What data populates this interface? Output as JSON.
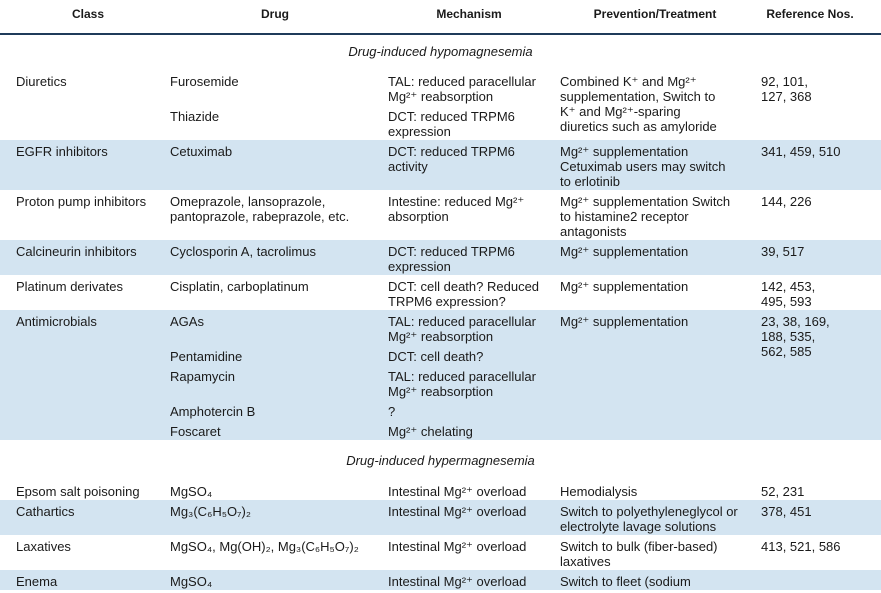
{
  "header": [
    "Class",
    "Drug",
    "Mechanism",
    "Prevention/Treatment",
    "Reference Nos."
  ],
  "sections": [
    {
      "title": "Drug-induced hypomagnesemia",
      "rows": [
        {
          "class": [
            "Diuretics"
          ],
          "entries": [
            {
              "drug": [
                "Furosemide"
              ],
              "mechanism": [
                "TAL: reduced paracellular",
                "Mg²⁺ reabsorption"
              ]
            },
            {
              "drug": [
                "Thiazide"
              ],
              "mechanism": [
                "DCT: reduced TRPM6",
                "expression"
              ]
            }
          ],
          "prevention": [
            "Combined K⁺ and Mg²⁺",
            "supplementation, Switch to",
            "K⁺ and Mg²⁺-sparing",
            "diuretics such as amyloride"
          ],
          "references": [
            "92, 101,",
            "127, 368"
          ]
        },
        {
          "class": [
            "EGFR inhibitors"
          ],
          "entries": [
            {
              "drug": [
                "Cetuximab"
              ],
              "mechanism": [
                "DCT: reduced TRPM6",
                "activity"
              ]
            }
          ],
          "prevention": [
            "Mg²⁺ supplementation",
            "Cetuximab users may switch",
            "to erlotinib"
          ],
          "references": [
            "341, 459, 510"
          ]
        },
        {
          "class": [
            "Proton pump inhibitors"
          ],
          "entries": [
            {
              "drug": [
                "Omeprazole, lansoprazole,",
                "pantoprazole, rabeprazole, etc."
              ],
              "mechanism": [
                "Intestine: reduced Mg²⁺",
                "absorption"
              ]
            }
          ],
          "prevention": [
            "Mg²⁺ supplementation Switch",
            "to histamine2 receptor",
            "antagonists"
          ],
          "references": [
            "144, 226"
          ]
        },
        {
          "class": [
            "Calcineurin inhibitors"
          ],
          "entries": [
            {
              "drug": [
                "Cyclosporin A, tacrolimus"
              ],
              "mechanism": [
                "DCT: reduced TRPM6",
                "expression"
              ]
            }
          ],
          "prevention": [
            "Mg²⁺ supplementation"
          ],
          "references": [
            "39, 517"
          ]
        },
        {
          "class": [
            "Platinum derivates"
          ],
          "entries": [
            {
              "drug": [
                "Cisplatin, carboplatinum"
              ],
              "mechanism": [
                "DCT: cell death? Reduced",
                "TRPM6 expression?"
              ]
            }
          ],
          "prevention": [
            "Mg²⁺ supplementation"
          ],
          "references": [
            "142, 453,",
            "495, 593"
          ]
        },
        {
          "class": [
            "Antimicrobials"
          ],
          "entries": [
            {
              "drug": [
                "AGAs"
              ],
              "mechanism": [
                "TAL: reduced paracellular",
                "Mg²⁺ reabsorption"
              ]
            },
            {
              "drug": [
                "Pentamidine"
              ],
              "mechanism": [
                "DCT: cell death?"
              ]
            },
            {
              "drug": [
                "Rapamycin"
              ],
              "mechanism": [
                "TAL: reduced paracellular",
                "Mg²⁺ reabsorption"
              ]
            },
            {
              "drug": [
                "Amphotercin B"
              ],
              "mechanism": [
                "?"
              ]
            },
            {
              "drug": [
                "Foscaret"
              ],
              "mechanism": [
                "Mg²⁺ chelating"
              ]
            }
          ],
          "prevention": [
            "Mg²⁺ supplementation"
          ],
          "references": [
            "23, 38, 169,",
            "188, 535,",
            "562, 585"
          ]
        }
      ]
    },
    {
      "title": "Drug-induced hypermagnesemia",
      "rows": [
        {
          "class": [
            "Epsom salt poisoning"
          ],
          "entries": [
            {
              "drug": [
                "MgSO₄"
              ],
              "mechanism": [
                "Intestinal Mg²⁺ overload"
              ]
            }
          ],
          "prevention": [
            "Hemodialysis"
          ],
          "references": [
            "52, 231"
          ]
        },
        {
          "class": [
            "Cathartics"
          ],
          "entries": [
            {
              "drug": [
                "Mg₃(C₆H₅O₇)₂"
              ],
              "mechanism": [
                "Intestinal Mg²⁺ overload"
              ]
            }
          ],
          "prevention": [
            "Switch to polyethyleneglycol or",
            "electrolyte lavage solutions"
          ],
          "references": [
            "378, 451"
          ]
        },
        {
          "class": [
            "Laxatives"
          ],
          "entries": [
            {
              "drug": [
                "MgSO₄, Mg(OH)₂, Mg₃(C₆H₅O₇)₂"
              ],
              "mechanism": [
                "Intestinal Mg²⁺ overload"
              ]
            }
          ],
          "prevention": [
            "Switch to bulk (fiber-based)",
            "laxatives"
          ],
          "references": [
            "413, 521, 586"
          ]
        },
        {
          "class": [
            "Enema"
          ],
          "entries": [
            {
              "drug": [
                "MgSO₄"
              ],
              "mechanism": [
                "Intestinal Mg²⁺ overload"
              ]
            }
          ],
          "prevention": [
            "Switch to fleet (sodium"
          ]
        }
      ]
    }
  ]
}
